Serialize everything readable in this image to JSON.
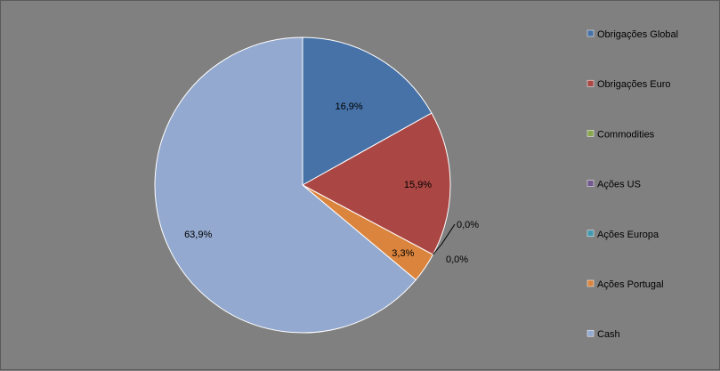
{
  "chart_data": {
    "type": "pie",
    "title": "",
    "legend_position": "right",
    "slices": [
      {
        "name": "Obrigações Global",
        "value": 16.9,
        "label": "16,9%",
        "color": "#4672a8"
      },
      {
        "name": "Obrigações Euro",
        "value": 15.9,
        "label": "15,9%",
        "color": "#aa4643"
      },
      {
        "name": "Commodities",
        "value": 0.0,
        "label": "0,0%",
        "color": "#89a54e"
      },
      {
        "name": "Ações US",
        "value": 0.0,
        "label": "0,0%",
        "color": "#71588f"
      },
      {
        "name": "Ações Europa",
        "value": 0.0,
        "label": "",
        "color": "#4198af"
      },
      {
        "name": "Ações Portugal",
        "value": 3.3,
        "label": "3,3%",
        "color": "#db843d"
      },
      {
        "name": "Cash",
        "value": 63.9,
        "label": "63,9%",
        "color": "#93a9cf"
      }
    ]
  }
}
